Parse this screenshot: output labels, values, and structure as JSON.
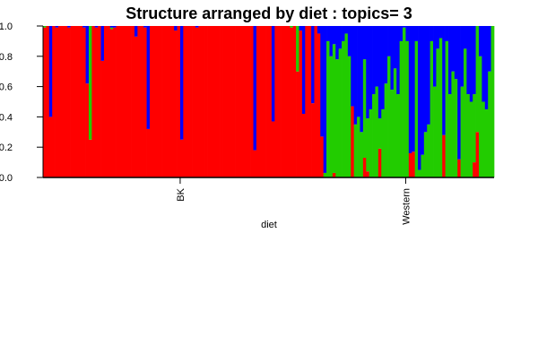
{
  "chart_data": {
    "type": "bar",
    "stacked": true,
    "title": "Structure arranged by diet : topics= 3",
    "xlabel": "diet",
    "ylabel": "",
    "ylim": [
      0,
      1
    ],
    "yticks": [
      "0.0",
      "0.2",
      "0.4",
      "0.6",
      "0.8",
      "1.0"
    ],
    "groups": [
      {
        "label": "BK",
        "start": 0,
        "end": 90
      },
      {
        "label": "Western",
        "start": 90,
        "end": 148
      }
    ],
    "series": [
      {
        "color": "#ff0000"
      },
      {
        "color": "#22cc00"
      },
      {
        "color": "#0000ff"
      }
    ],
    "samples": [
      [
        0.99,
        0.01,
        0.0
      ],
      [
        1.0,
        0.0,
        0.0
      ],
      [
        0.4,
        0.0,
        0.6
      ],
      [
        1.0,
        0.0,
        0.0
      ],
      [
        0.99,
        0.0,
        0.01
      ],
      [
        1.0,
        0.0,
        0.0
      ],
      [
        1.0,
        0.0,
        0.0
      ],
      [
        1.0,
        0.0,
        0.0
      ],
      [
        0.99,
        0.0,
        0.01
      ],
      [
        1.0,
        0.0,
        0.0
      ],
      [
        1.0,
        0.0,
        0.0
      ],
      [
        1.0,
        0.0,
        0.0
      ],
      [
        1.0,
        0.0,
        0.0
      ],
      [
        0.99,
        0.0,
        0.01
      ],
      [
        0.62,
        0.0,
        0.38
      ],
      [
        0.25,
        0.75,
        0.0
      ],
      [
        1.0,
        0.0,
        0.0
      ],
      [
        0.99,
        0.0,
        0.01
      ],
      [
        1.0,
        0.0,
        0.0
      ],
      [
        0.77,
        0.0,
        0.23
      ],
      [
        1.0,
        0.0,
        0.0
      ],
      [
        1.0,
        0.0,
        0.0
      ],
      [
        0.98,
        0.01,
        0.01
      ],
      [
        0.99,
        0.0,
        0.01
      ],
      [
        1.0,
        0.0,
        0.0
      ],
      [
        1.0,
        0.0,
        0.0
      ],
      [
        1.0,
        0.0,
        0.0
      ],
      [
        1.0,
        0.0,
        0.0
      ],
      [
        1.0,
        0.0,
        0.0
      ],
      [
        1.0,
        0.0,
        0.0
      ],
      [
        0.93,
        0.0,
        0.07
      ],
      [
        1.0,
        0.0,
        0.0
      ],
      [
        1.0,
        0.0,
        0.0
      ],
      [
        0.99,
        0.0,
        0.01
      ],
      [
        0.32,
        0.0,
        0.68
      ],
      [
        1.0,
        0.0,
        0.0
      ],
      [
        1.0,
        0.0,
        0.0
      ],
      [
        1.0,
        0.0,
        0.0
      ],
      [
        1.0,
        0.0,
        0.0
      ],
      [
        1.0,
        0.0,
        0.0
      ],
      [
        1.0,
        0.0,
        0.0
      ],
      [
        1.0,
        0.0,
        0.0
      ],
      [
        1.0,
        0.0,
        0.0
      ],
      [
        0.97,
        0.0,
        0.03
      ],
      [
        1.0,
        0.0,
        0.0
      ],
      [
        0.25,
        0.0,
        0.75
      ],
      [
        1.0,
        0.0,
        0.0
      ],
      [
        1.0,
        0.0,
        0.0
      ],
      [
        1.0,
        0.0,
        0.0
      ],
      [
        1.0,
        0.0,
        0.0
      ],
      [
        0.99,
        0.0,
        0.01
      ],
      [
        1.0,
        0.0,
        0.0
      ],
      [
        1.0,
        0.0,
        0.0
      ],
      [
        1.0,
        0.0,
        0.0
      ],
      [
        1.0,
        0.0,
        0.0
      ],
      [
        1.0,
        0.0,
        0.0
      ],
      [
        1.0,
        0.0,
        0.0
      ],
      [
        1.0,
        0.0,
        0.0
      ],
      [
        1.0,
        0.0,
        0.0
      ],
      [
        1.0,
        0.0,
        0.0
      ],
      [
        1.0,
        0.0,
        0.0
      ],
      [
        1.0,
        0.0,
        0.0
      ],
      [
        1.0,
        0.0,
        0.0
      ],
      [
        1.0,
        0.0,
        0.0
      ],
      [
        1.0,
        0.0,
        0.0
      ],
      [
        1.0,
        0.0,
        0.0
      ],
      [
        1.0,
        0.0,
        0.0
      ],
      [
        1.0,
        0.0,
        0.0
      ],
      [
        1.0,
        0.0,
        0.0
      ],
      [
        0.18,
        0.0,
        0.82
      ],
      [
        1.0,
        0.0,
        0.0
      ],
      [
        1.0,
        0.0,
        0.0
      ],
      [
        1.0,
        0.0,
        0.0
      ],
      [
        1.0,
        0.0,
        0.0
      ],
      [
        1.0,
        0.0,
        0.0
      ],
      [
        0.37,
        0.0,
        0.63
      ],
      [
        1.0,
        0.0,
        0.0
      ],
      [
        1.0,
        0.0,
        0.0
      ],
      [
        1.0,
        0.0,
        0.0
      ],
      [
        1.0,
        0.0,
        0.0
      ],
      [
        1.0,
        0.0,
        0.0
      ],
      [
        0.99,
        0.01,
        0.0
      ],
      [
        1.0,
        0.0,
        0.0
      ],
      [
        0.7,
        0.3,
        0.0
      ],
      [
        0.97,
        0.0,
        0.03
      ],
      [
        0.42,
        0.0,
        0.58
      ],
      [
        1.0,
        0.0,
        0.0
      ],
      [
        1.0,
        0.0,
        0.0
      ],
      [
        0.49,
        0.0,
        0.51
      ],
      [
        1.0,
        0.0,
        0.0
      ],
      [
        0.95,
        0.0,
        0.05
      ],
      [
        0.27,
        0.0,
        0.73
      ],
      [
        0.0,
        0.03,
        0.97
      ],
      [
        0.0,
        0.9,
        0.1
      ],
      [
        0.0,
        0.8,
        0.2
      ],
      [
        0.03,
        0.85,
        0.12
      ],
      [
        0.0,
        0.78,
        0.22
      ],
      [
        0.0,
        0.85,
        0.15
      ],
      [
        0.0,
        0.9,
        0.1
      ],
      [
        0.0,
        0.95,
        0.05
      ],
      [
        0.0,
        0.8,
        0.2
      ],
      [
        0.47,
        0.0,
        0.53
      ],
      [
        0.0,
        0.35,
        0.65
      ],
      [
        0.0,
        0.4,
        0.6
      ],
      [
        0.0,
        0.3,
        0.7
      ],
      [
        0.13,
        0.65,
        0.22
      ],
      [
        0.04,
        0.35,
        0.61
      ],
      [
        0.0,
        0.45,
        0.55
      ],
      [
        0.0,
        0.55,
        0.45
      ],
      [
        0.0,
        0.6,
        0.4
      ],
      [
        0.19,
        0.2,
        0.61
      ],
      [
        0.0,
        0.45,
        0.55
      ],
      [
        0.0,
        0.62,
        0.38
      ],
      [
        0.0,
        0.8,
        0.2
      ],
      [
        0.0,
        0.58,
        0.42
      ],
      [
        0.0,
        0.72,
        0.28
      ],
      [
        0.0,
        0.55,
        0.45
      ],
      [
        0.0,
        0.9,
        0.1
      ],
      [
        0.0,
        0.99,
        0.01
      ],
      [
        0.0,
        0.9,
        0.1
      ],
      [
        0.16,
        0.0,
        0.84
      ],
      [
        0.17,
        0.0,
        0.83
      ],
      [
        0.0,
        0.9,
        0.1
      ],
      [
        0.0,
        0.05,
        0.95
      ],
      [
        0.0,
        0.15,
        0.85
      ],
      [
        0.0,
        0.3,
        0.7
      ],
      [
        0.0,
        0.35,
        0.65
      ],
      [
        0.0,
        0.9,
        0.1
      ],
      [
        0.0,
        0.6,
        0.4
      ],
      [
        0.0,
        0.85,
        0.15
      ],
      [
        0.0,
        0.92,
        0.08
      ],
      [
        0.28,
        0.0,
        0.72
      ],
      [
        0.0,
        0.9,
        0.1
      ],
      [
        0.0,
        0.55,
        0.45
      ],
      [
        0.0,
        0.7,
        0.3
      ],
      [
        0.0,
        0.65,
        0.35
      ],
      [
        0.12,
        0.0,
        0.88
      ],
      [
        0.0,
        0.6,
        0.4
      ],
      [
        0.0,
        0.85,
        0.15
      ],
      [
        0.0,
        0.55,
        0.45
      ],
      [
        0.0,
        0.5,
        0.5
      ],
      [
        0.1,
        0.45,
        0.45
      ],
      [
        0.3,
        0.7,
        0.0
      ],
      [
        0.0,
        0.8,
        0.2
      ],
      [
        0.0,
        0.5,
        0.5
      ],
      [
        0.0,
        0.45,
        0.55
      ],
      [
        0.0,
        0.7,
        0.3
      ],
      [
        0.0,
        1.0,
        0.0
      ]
    ]
  }
}
